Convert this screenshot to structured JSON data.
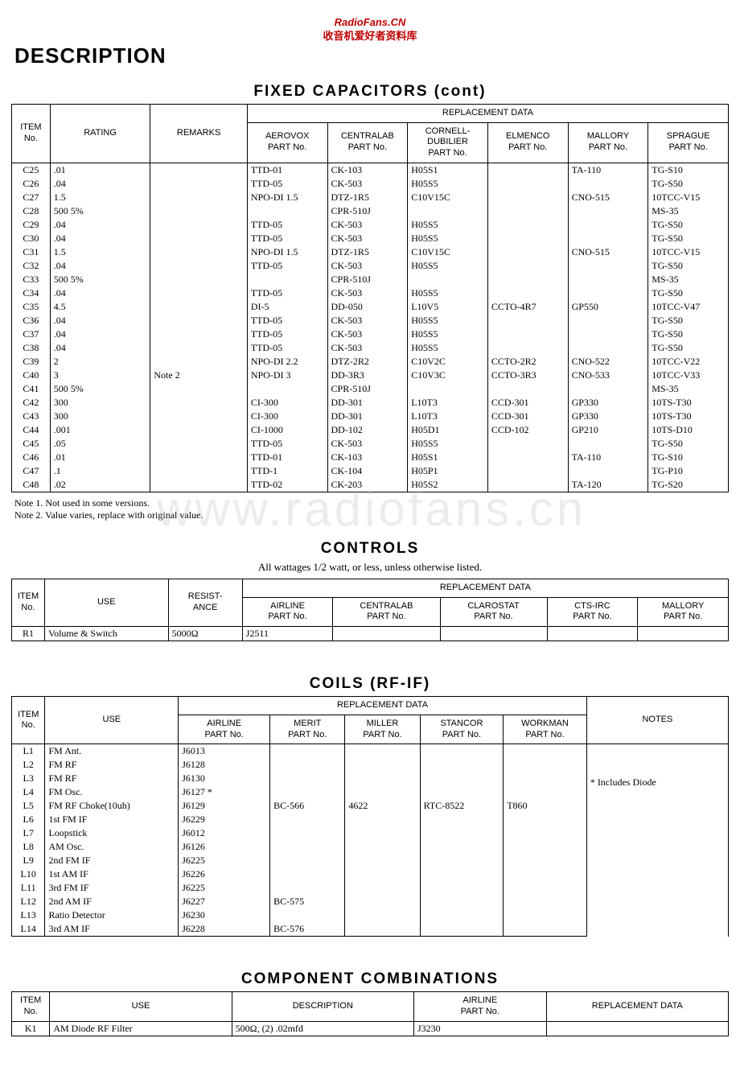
{
  "watermark_top": {
    "line1": "RadioFans.CN",
    "line2": "收音机爱好者资料库"
  },
  "bg_watermark": "www.radiofans.cn",
  "page_title": "DESCRIPTION",
  "capacitors": {
    "title": "FIXED  CAPACITORS (cont)",
    "replacement_header": "REPLACEMENT DATA",
    "columns": [
      "ITEM\nNo.",
      "RATING",
      "REMARKS",
      "AEROVOX\nPART No.",
      "CENTRALAB\nPART No.",
      "CORNELL-\nDUBILIER\nPART No.",
      "ELMENCO\nPART No.",
      "MALLORY\nPART No.",
      "SPRAGUE\nPART No."
    ],
    "rows": [
      [
        "C25",
        ".01",
        "",
        "TTD-01",
        "CK-103",
        "H05S1",
        "",
        "TA-110",
        "TG-S10"
      ],
      [
        "C26",
        ".04",
        "",
        "TTD-05",
        "CK-503",
        "H05S5",
        "",
        "",
        "TG-S50"
      ],
      [
        "C27",
        "1.5",
        "",
        "NPO-DI 1.5",
        "DTZ-1R5",
        "C10V15C",
        "",
        "CNO-515",
        "10TCC-V15"
      ],
      [
        "C28",
        "500  5%",
        "",
        "",
        "CPR-510J",
        "",
        "",
        "",
        "MS-35"
      ],
      [
        "C29",
        ".04",
        "",
        "TTD-05",
        "CK-503",
        "H05S5",
        "",
        "",
        "TG-S50"
      ],
      [
        "C30",
        ".04",
        "",
        "TTD-05",
        "CK-503",
        "H05S5",
        "",
        "",
        "TG-S50"
      ],
      [
        "C31",
        "1.5",
        "",
        "NPO-DI 1.5",
        "DTZ-1R5",
        "C10V15C",
        "",
        "CNO-515",
        "10TCC-V15"
      ],
      [
        "C32",
        ".04",
        "",
        "TTD-05",
        "CK-503",
        "H05S5",
        "",
        "",
        "TG-S50"
      ],
      [
        "C33",
        "500  5%",
        "",
        "",
        "CPR-510J",
        "",
        "",
        "",
        "MS-35"
      ],
      [
        "C34",
        ".04",
        "",
        "TTD-05",
        "CK-503",
        "H05S5",
        "",
        "",
        "TG-S50"
      ],
      [
        "C35",
        "4.5",
        "",
        "DI-5",
        "DD-050",
        "L10V5",
        "CCTO-4R7",
        "GP550",
        "10TCC-V47"
      ],
      [
        "C36",
        ".04",
        "",
        "TTD-05",
        "CK-503",
        "H05S5",
        "",
        "",
        "TG-S50"
      ],
      [
        "C37",
        ".04",
        "",
        "TTD-05",
        "CK-503",
        "H05S5",
        "",
        "",
        "TG-S50"
      ],
      [
        "C38",
        ".04",
        "",
        "TTD-05",
        "CK-503",
        "H05S5",
        "",
        "",
        "TG-S50"
      ],
      [
        "C39",
        "2",
        "",
        "NPO-DI 2.2",
        "DTZ-2R2",
        "C10V2C",
        "CCTO-2R2",
        "CNO-522",
        "10TCC-V22"
      ],
      [
        "C40",
        "3",
        "Note 2",
        "NPO-DI 3",
        "DD-3R3",
        "C10V3C",
        "CCTO-3R3",
        "CNO-533",
        "10TCC-V33"
      ],
      [
        "C41",
        "500  5%",
        "",
        "",
        "CPR-510J",
        "",
        "",
        "",
        "MS-35"
      ],
      [
        "C42",
        "300",
        "",
        "CI-300",
        "DD-301",
        "L10T3",
        "CCD-301",
        "GP330",
        "10TS-T30"
      ],
      [
        "C43",
        "300",
        "",
        "CI-300",
        "DD-301",
        "L10T3",
        "CCD-301",
        "GP330",
        "10TS-T30"
      ],
      [
        "C44",
        ".001",
        "",
        "CI-1000",
        "DD-102",
        "H05D1",
        "CCD-102",
        "GP210",
        "10TS-D10"
      ],
      [
        "C45",
        ".05",
        "",
        "TTD-05",
        "CK-503",
        "H05S5",
        "",
        "",
        "TG-S50"
      ],
      [
        "C46",
        ".01",
        "",
        "TTD-01",
        "CK-103",
        "H05S1",
        "",
        "TA-110",
        "TG-S10"
      ],
      [
        "C47",
        ".1",
        "",
        "TTD-1",
        "CK-104",
        "H05P1",
        "",
        "",
        "TG-P10"
      ],
      [
        "C48",
        ".02",
        "",
        "TTD-02",
        "CK-203",
        "H05S2",
        "",
        "TA-120",
        "TG-S20"
      ]
    ],
    "notes": [
      "Note 1.   Not used in some versions.",
      "Note 2.   Value varies, replace with original value."
    ]
  },
  "controls": {
    "title": "CONTROLS",
    "subtitle": "All wattages 1/2 watt, or less, unless otherwise listed.",
    "replacement_header": "REPLACEMENT DATA",
    "columns": [
      "ITEM\nNo.",
      "USE",
      "RESIST-\nANCE",
      "AIRLINE\nPART No.",
      "CENTRALAB\nPART No.",
      "CLAROSTAT\nPART No.",
      "CTS-IRC\nPART No.",
      "MALLORY\nPART No."
    ],
    "rows": [
      [
        "R1",
        "Volume & Switch",
        "5000Ω",
        "J2511",
        "",
        "",
        "",
        ""
      ]
    ]
  },
  "coils": {
    "title": "COILS  (RF-IF)",
    "replacement_header": "REPLACEMENT DATA",
    "columns": [
      "ITEM\nNo.",
      "USE",
      "AIRLINE\nPART No.",
      "MERIT\nPART No.",
      "MILLER\nPART No.",
      "STANCOR\nPART No.",
      "WORKMAN\nPART No.",
      "NOTES"
    ],
    "note_cell": "* Includes Diode",
    "rows": [
      [
        "L1",
        "FM Ant.",
        "J6013",
        "",
        "",
        "",
        "",
        ""
      ],
      [
        "L2",
        "FM RF",
        "J6128",
        "",
        "",
        "",
        "",
        ""
      ],
      [
        "L3",
        "FM RF",
        "J6130",
        "",
        "",
        "",
        "",
        ""
      ],
      [
        "L4",
        "FM Osc.",
        "J6127 *",
        "",
        "",
        "",
        "",
        ""
      ],
      [
        "L5",
        "FM RF Choke(10uh)",
        "J6129",
        "BC-566",
        "4622",
        "RTC-8522",
        "T860",
        ""
      ],
      [
        "L6",
        "1st FM IF",
        "J6229",
        "",
        "",
        "",
        "",
        ""
      ],
      [
        "L7",
        "Loopstick",
        "J6012",
        "",
        "",
        "",
        "",
        ""
      ],
      [
        "L8",
        "AM Osc.",
        "J6126",
        "",
        "",
        "",
        "",
        ""
      ],
      [
        "L9",
        "2nd FM IF",
        "J6225",
        "",
        "",
        "",
        "",
        ""
      ],
      [
        "L10",
        "1st AM IF",
        "J6226",
        "",
        "",
        "",
        "",
        ""
      ],
      [
        "L11",
        "3rd FM IF",
        "J6225",
        "",
        "",
        "",
        "",
        ""
      ],
      [
        "L12",
        "2nd AM IF",
        "J6227",
        "BC-575",
        "",
        "",
        "",
        ""
      ],
      [
        "L13",
        "Ratio Detector",
        "J6230",
        "",
        "",
        "",
        "",
        ""
      ],
      [
        "L14",
        "3rd AM IF",
        "J6228",
        "BC-576",
        "",
        "",
        "",
        ""
      ]
    ]
  },
  "combos": {
    "title": "COMPONENT  COMBINATIONS",
    "columns": [
      "ITEM\nNo.",
      "USE",
      "DESCRIPTION",
      "AIRLINE\nPART No.",
      "REPLACEMENT DATA"
    ],
    "rows": [
      [
        "K1",
        "AM Diode RF Filter",
        "500Ω, (2) .02mfd",
        "J3230",
        ""
      ]
    ]
  }
}
